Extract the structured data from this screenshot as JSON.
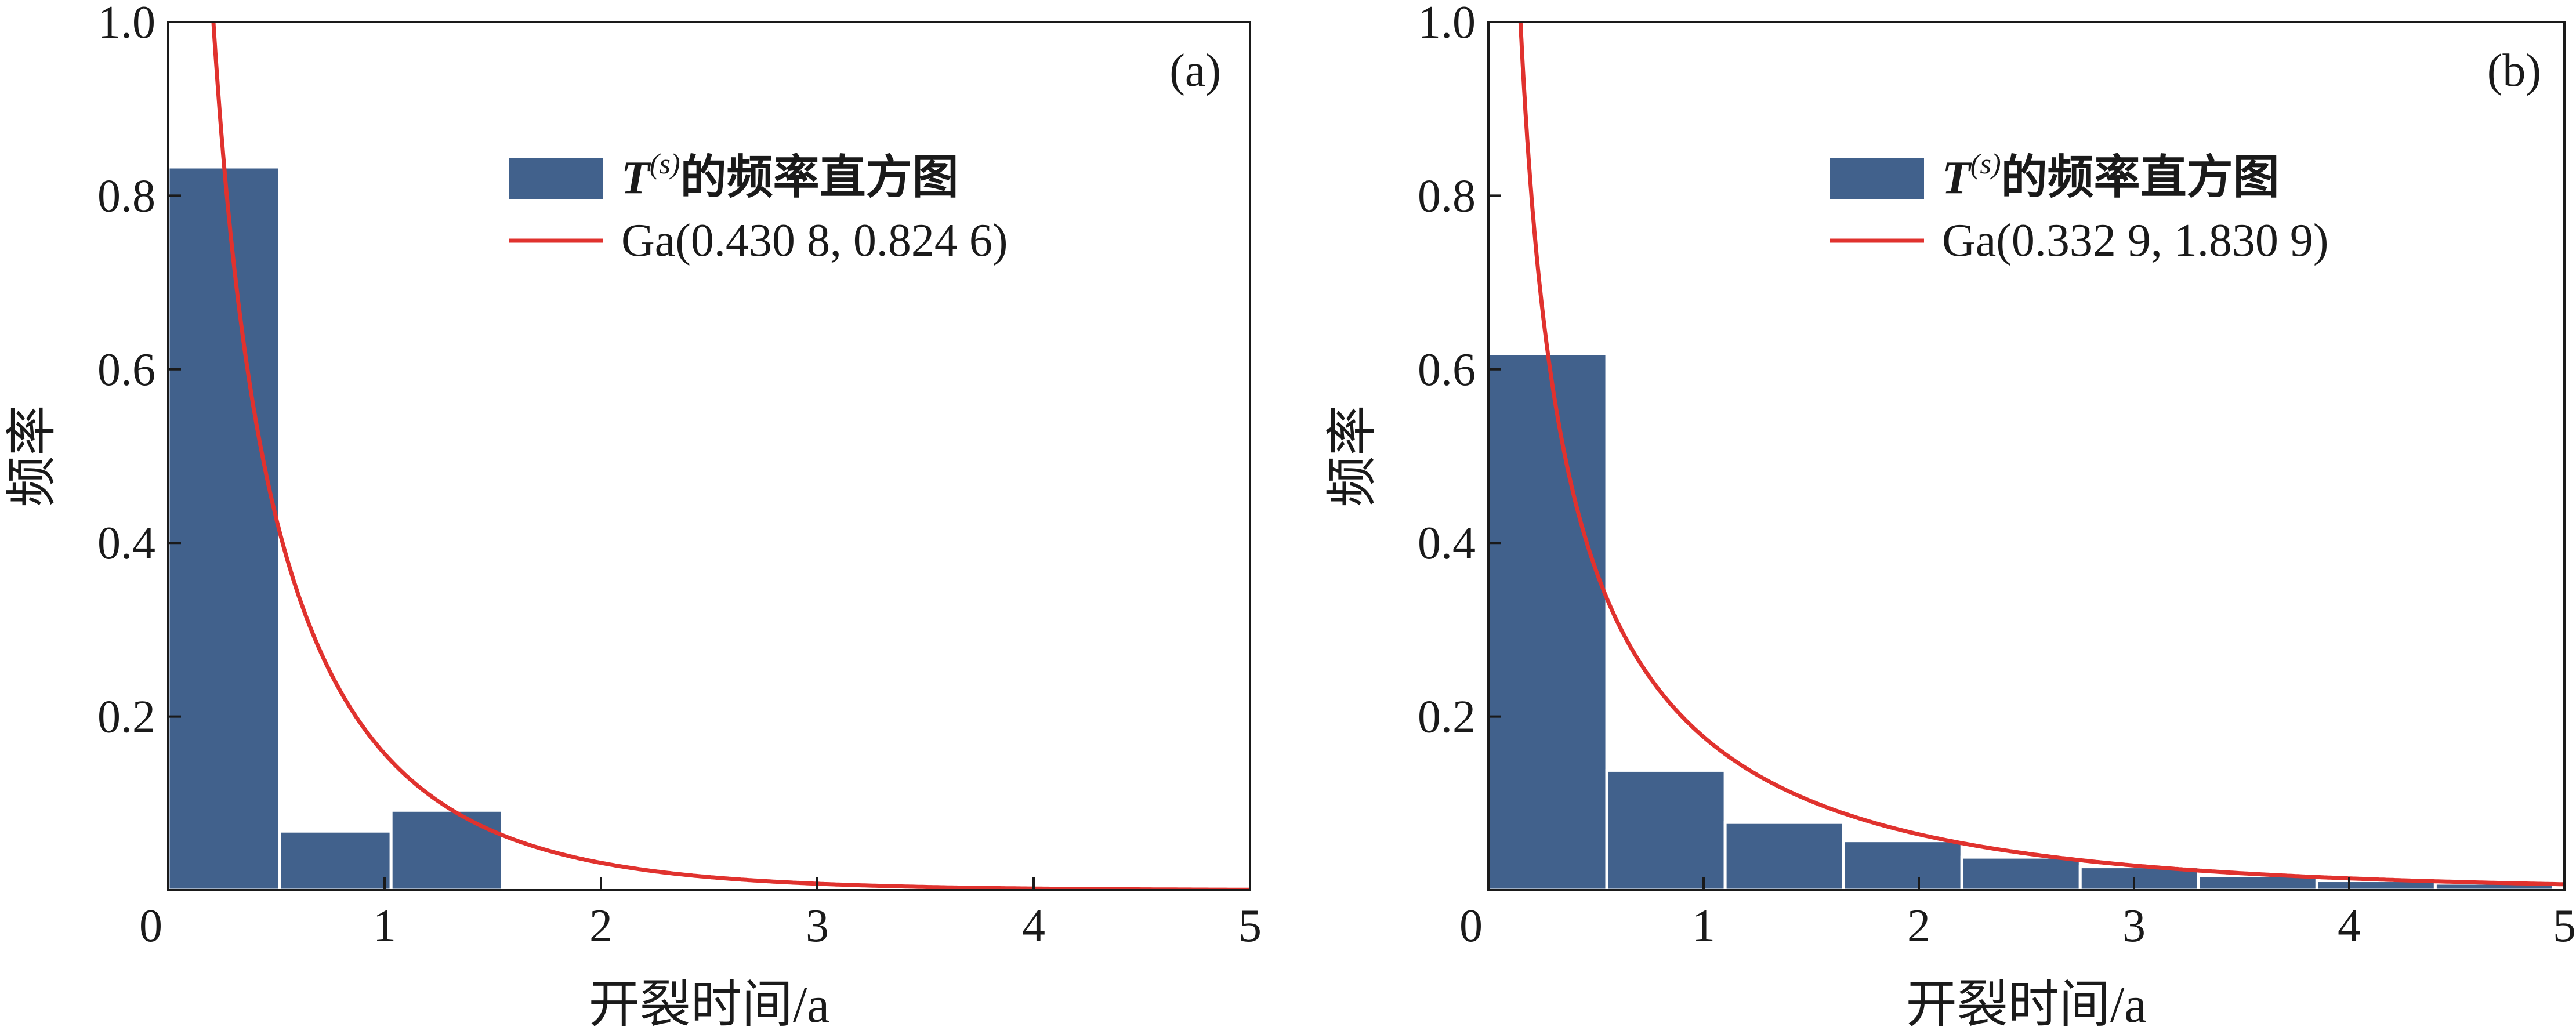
{
  "figure": {
    "panels": [
      "a",
      "b"
    ]
  },
  "colors": {
    "bar_fill": "#41618C",
    "bar_edge": "#ffffff",
    "curve": "#E0322E",
    "axis": "#1a1a1a",
    "background": "#ffffff"
  },
  "chart_data": [
    {
      "type": "bar",
      "panel_tag": "(a)",
      "xlabel": "开裂时间/a",
      "ylabel": "频率",
      "xlim": [
        0,
        5
      ],
      "ylim": [
        0,
        1.0
      ],
      "xticks": [
        0,
        1,
        2,
        3,
        4,
        5
      ],
      "xtick_labels": [
        "0",
        "1",
        "2",
        "3",
        "4",
        "5"
      ],
      "yticks": [
        0,
        0.2,
        0.4,
        0.6,
        0.8,
        1.0
      ],
      "ytick_labels": [
        "0",
        "0.2",
        "0.4",
        "0.6",
        "0.8",
        "1.0"
      ],
      "grid": false,
      "legend_position": "upper-right",
      "bins": [
        {
          "x0": 0.0,
          "x1": 0.515,
          "value": 0.833
        },
        {
          "x0": 0.515,
          "x1": 1.03,
          "value": 0.068
        },
        {
          "x0": 1.03,
          "x1": 1.545,
          "value": 0.092
        }
      ],
      "histogram_legend": {
        "italic_symbol": "T",
        "superscript": "(s)",
        "suffix": "的频率直方图"
      },
      "curve": {
        "label": "Ga(0.430 8, 0.824 6)",
        "shape": 0.4308,
        "scale": 0.8246
      }
    },
    {
      "type": "bar",
      "panel_tag": "(b)",
      "xlabel": "开裂时间/a",
      "ylabel": "频率",
      "xlim": [
        0,
        5
      ],
      "ylim": [
        0,
        1.0
      ],
      "xticks": [
        0,
        1,
        2,
        3,
        4,
        5
      ],
      "xtick_labels": [
        "0",
        "1",
        "2",
        "3",
        "4",
        "5"
      ],
      "yticks": [
        0,
        0.2,
        0.4,
        0.6,
        0.8,
        1.0
      ],
      "ytick_labels": [
        "0",
        "0.2",
        "0.4",
        "0.6",
        "0.8",
        "1.0"
      ],
      "grid": false,
      "legend_position": "upper-right",
      "bins": [
        {
          "x0": 0.0,
          "x1": 0.55,
          "value": 0.618
        },
        {
          "x0": 0.55,
          "x1": 1.1,
          "value": 0.138
        },
        {
          "x0": 1.1,
          "x1": 1.65,
          "value": 0.078
        },
        {
          "x0": 1.65,
          "x1": 2.2,
          "value": 0.057
        },
        {
          "x0": 2.2,
          "x1": 2.75,
          "value": 0.038
        },
        {
          "x0": 2.75,
          "x1": 3.3,
          "value": 0.027
        },
        {
          "x0": 3.3,
          "x1": 3.85,
          "value": 0.017
        },
        {
          "x0": 3.85,
          "x1": 4.4,
          "value": 0.011
        },
        {
          "x0": 4.4,
          "x1": 4.95,
          "value": 0.008
        }
      ],
      "histogram_legend": {
        "italic_symbol": "T",
        "superscript": "(s)",
        "suffix": "的频率直方图"
      },
      "curve": {
        "label": "Ga(0.332 9, 1.830 9)",
        "shape": 0.3329,
        "scale": 1.8309
      }
    }
  ]
}
